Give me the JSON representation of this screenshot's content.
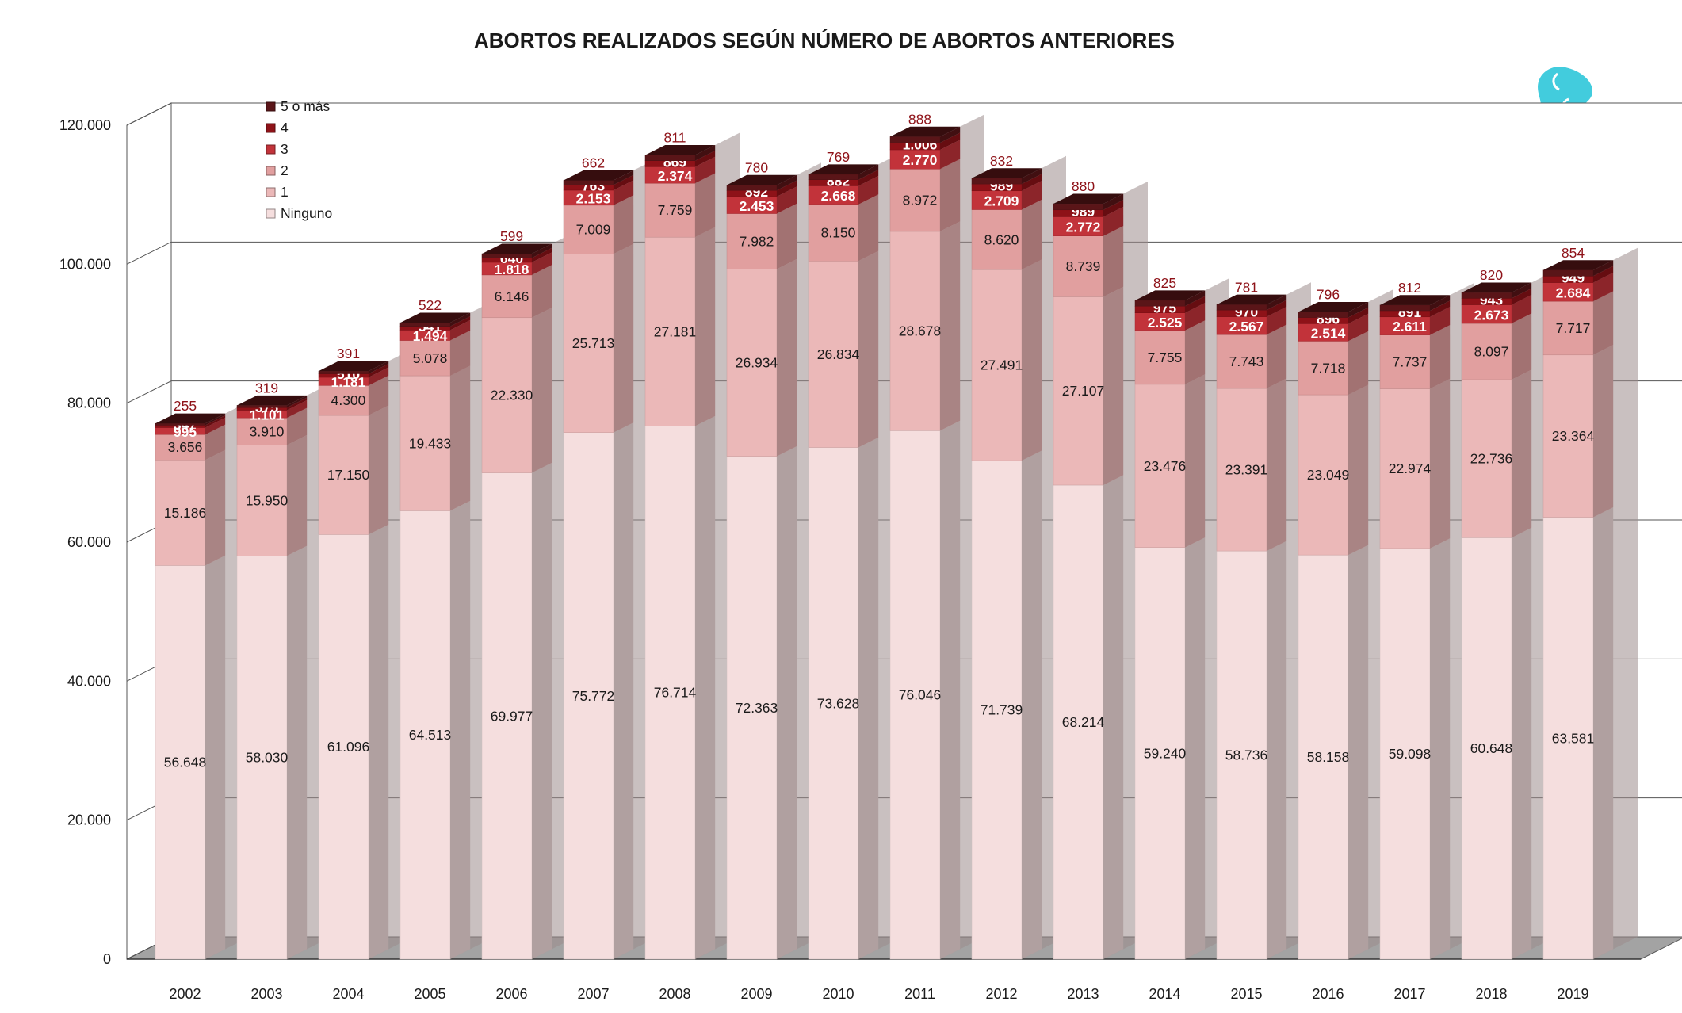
{
  "chart_data": {
    "type": "bar",
    "stacked": true,
    "three_d": true,
    "title": "ABORTOS REALIZADOS SEGÚN NÚMERO DE ABORTOS ANTERIORES",
    "xlabel": "",
    "ylabel": "",
    "ylim": [
      0,
      120000
    ],
    "yticks": [
      0,
      20000,
      40000,
      60000,
      80000,
      100000,
      120000
    ],
    "ytick_labels": [
      "0",
      "20.000",
      "40.000",
      "60.000",
      "80.000",
      "100.000",
      "120.000"
    ],
    "grid": true,
    "legend_position": "top-left",
    "categories": [
      "2002",
      "2003",
      "2004",
      "2005",
      "2006",
      "2007",
      "2008",
      "2009",
      "2010",
      "2011",
      "2012",
      "2013",
      "2014",
      "2015",
      "2016",
      "2017",
      "2018",
      "2019"
    ],
    "series": [
      {
        "name": "Ninguno",
        "color": "#f5dede",
        "values": [
          56648,
          58030,
          61096,
          64513,
          69977,
          75772,
          76714,
          72363,
          73628,
          76046,
          71739,
          68214,
          59240,
          58736,
          58158,
          59098,
          60648,
          63581
        ],
        "labels": [
          "56.648",
          "58.030",
          "61.096",
          "64.513",
          "69.977",
          "75.772",
          "76.714",
          "72.363",
          "73.628",
          "76.046",
          "71.739",
          "68.214",
          "59.240",
          "58.736",
          "58.158",
          "59.098",
          "60.648",
          "63.581"
        ]
      },
      {
        "name": "1",
        "color": "#ebb8b8",
        "values": [
          15186,
          15950,
          17150,
          19433,
          22330,
          25713,
          27181,
          26934,
          26834,
          28678,
          27491,
          27107,
          23476,
          23391,
          23049,
          22974,
          22736,
          23364
        ],
        "labels": [
          "15.186",
          "15.950",
          "17.150",
          "19.433",
          "22.330",
          "25.713",
          "27.181",
          "26.934",
          "26.834",
          "28.678",
          "27.491",
          "27.107",
          "23.476",
          "23.391",
          "23.049",
          "22.974",
          "22.736",
          "23.364"
        ]
      },
      {
        "name": "2",
        "color": "#e19f9f",
        "values": [
          3656,
          3910,
          4300,
          5078,
          6146,
          7009,
          7759,
          7982,
          8150,
          8972,
          8620,
          8739,
          7755,
          7743,
          7718,
          7737,
          8097,
          7717
        ],
        "labels": [
          "3.656",
          "3.910",
          "4.300",
          "5.078",
          "6.146",
          "7.009",
          "7.759",
          "7.982",
          "8.150",
          "8.972",
          "8.620",
          "8.739",
          "7.755",
          "7.743",
          "7.718",
          "7.737",
          "8.097",
          "7.717"
        ]
      },
      {
        "name": "3",
        "color": "#c2333a",
        "values": [
          995,
          1101,
          1181,
          1494,
          1818,
          2153,
          2374,
          2453,
          2668,
          2770,
          2709,
          2772,
          2525,
          2567,
          2514,
          2611,
          2673,
          2684
        ],
        "labels": [
          "995",
          "1.101",
          "1.181",
          "1.494",
          "1.818",
          "2.153",
          "2.374",
          "2.453",
          "2.668",
          "2.770",
          "2.709",
          "2.772",
          "2.525",
          "2.567",
          "2.514",
          "2.611",
          "2.673",
          "2.684"
        ]
      },
      {
        "name": "4",
        "color": "#8e1218",
        "values": [
          347,
          375,
          510,
          541,
          640,
          763,
          869,
          892,
          882,
          1006,
          989,
          989,
          975,
          970,
          896,
          891,
          943,
          949
        ],
        "labels": [
          "347",
          "375",
          "510",
          "541",
          "640",
          "763",
          "869",
          "892",
          "882",
          "1.006",
          "989",
          "989",
          "975",
          "970",
          "896",
          "891",
          "943",
          "949"
        ]
      },
      {
        "name": "5 o más",
        "color": "#5a1518",
        "values": [
          255,
          319,
          391,
          522,
          599,
          662,
          811,
          780,
          769,
          888,
          832,
          880,
          825,
          781,
          796,
          812,
          820,
          854
        ],
        "labels": [
          "255",
          "319",
          "391",
          "522",
          "599",
          "662",
          "811",
          "780",
          "769",
          "888",
          "832",
          "880",
          "825",
          "781",
          "796",
          "812",
          "820",
          "854"
        ]
      }
    ],
    "legend_order": [
      "5 o más",
      "4",
      "3",
      "2",
      "1",
      "Ninguno"
    ]
  }
}
